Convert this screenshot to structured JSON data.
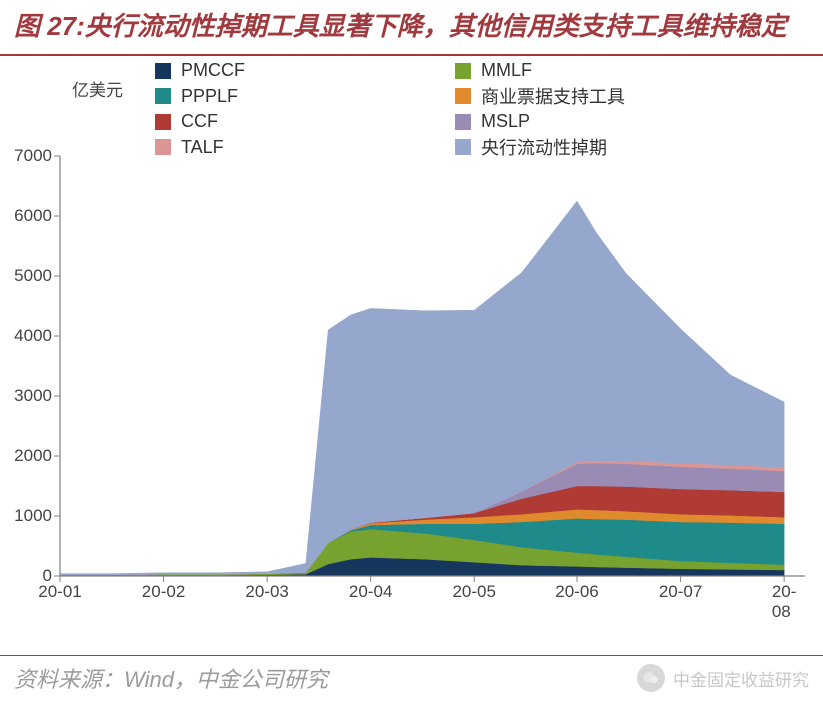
{
  "title": "图 27:央行流动性掉期工具显著下降，其他信用类支持工具维持稳定",
  "title_color": "#a13a3e",
  "title_fontsize": 26,
  "title_style": "italic bold",
  "rule_color": "#a13a3e",
  "y_unit_label": "亿美元",
  "footer_source": "资料来源：Wind，中金公司研究",
  "footer_color": "#9b9b9b",
  "footer_fontsize": 22,
  "watermark_text": "中金固定收益研究",
  "watermark_color": "#c7c7c7",
  "chart": {
    "type": "stacked-area",
    "background_color": "#ffffff",
    "axis_color": "#808080",
    "label_color": "#444444",
    "label_fontsize": 17,
    "legend_fontsize": 18,
    "ylim": [
      0,
      7000
    ],
    "ytick_step": 1000,
    "yticks": [
      0,
      1000,
      2000,
      3000,
      4000,
      5000,
      6000,
      7000
    ],
    "x_categories": [
      "20-01",
      "20-02",
      "20-03",
      "20-04",
      "20-05",
      "20-06",
      "20-07",
      "20-08"
    ],
    "x_positions": [
      0,
      0.139,
      0.278,
      0.417,
      0.556,
      0.694,
      0.833,
      0.972
    ],
    "x_dense": [
      0,
      0.07,
      0.139,
      0.21,
      0.278,
      0.33,
      0.36,
      0.39,
      0.417,
      0.49,
      0.556,
      0.62,
      0.694,
      0.72,
      0.76,
      0.833,
      0.9,
      0.972
    ],
    "series": [
      {
        "name": "PMCCF",
        "color": "#17365d",
        "values": [
          10,
          10,
          15,
          15,
          20,
          30,
          200,
          280,
          310,
          280,
          230,
          180,
          160,
          150,
          140,
          120,
          110,
          100
        ]
      },
      {
        "name": "MMLF",
        "color": "#78a22f",
        "values": [
          10,
          10,
          15,
          15,
          20,
          30,
          350,
          460,
          470,
          430,
          370,
          300,
          230,
          210,
          180,
          130,
          110,
          90
        ]
      },
      {
        "name": "PPPLF",
        "color": "#1f8a8a",
        "values": [
          0,
          0,
          0,
          0,
          0,
          0,
          0,
          20,
          70,
          160,
          270,
          420,
          570,
          590,
          620,
          650,
          670,
          680
        ]
      },
      {
        "name": "商业票据支持工具",
        "color": "#e08a2e",
        "values": [
          0,
          0,
          0,
          0,
          0,
          0,
          0,
          10,
          30,
          70,
          110,
          130,
          150,
          150,
          140,
          130,
          120,
          110
        ]
      },
      {
        "name": "CCF",
        "color": "#b03a34",
        "values": [
          0,
          0,
          0,
          0,
          0,
          0,
          0,
          0,
          10,
          30,
          70,
          260,
          390,
          400,
          410,
          420,
          420,
          420
        ]
      },
      {
        "name": "MSLP",
        "color": "#9a8bb4",
        "values": [
          0,
          0,
          0,
          0,
          0,
          0,
          0,
          0,
          0,
          0,
          0,
          120,
          370,
          380,
          380,
          370,
          360,
          350
        ]
      },
      {
        "name": "TALF",
        "color": "#d99694",
        "values": [
          0,
          0,
          0,
          0,
          0,
          0,
          0,
          0,
          0,
          0,
          0,
          0,
          30,
          40,
          50,
          60,
          60,
          60
        ]
      },
      {
        "name": "央行流动性掉期",
        "color": "#95a7cc",
        "values": [
          20,
          20,
          25,
          25,
          30,
          150,
          3550,
          3580,
          3570,
          3450,
          3380,
          3650,
          4350,
          3800,
          3120,
          2240,
          1500,
          1090
        ]
      }
    ],
    "legend_layout": [
      [
        "PMCCF",
        "MMLF"
      ],
      [
        "PPPLF",
        "商业票据支持工具"
      ],
      [
        "CCF",
        "MSLP"
      ],
      [
        "TALF",
        "央行流动性掉期"
      ]
    ]
  }
}
